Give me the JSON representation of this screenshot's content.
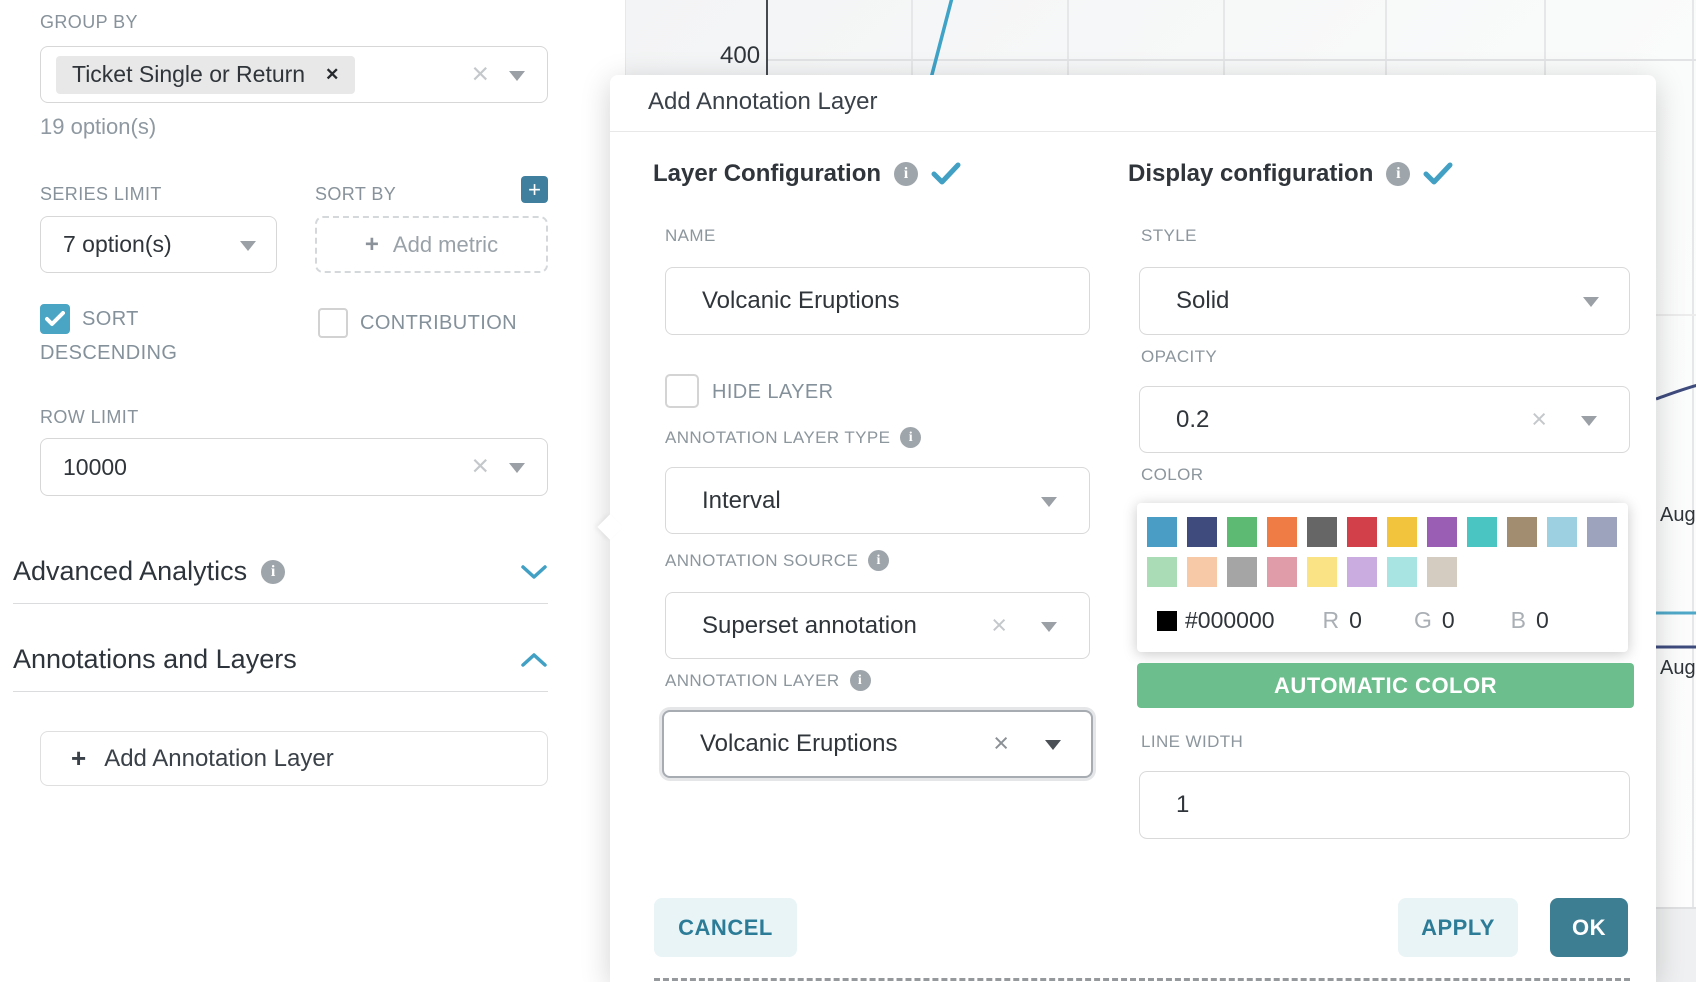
{
  "left_panel": {
    "group_by": {
      "label": "GROUP BY",
      "tag": "Ticket Single or Return",
      "tag_remove": "✕",
      "hint": "19 option(s)"
    },
    "series_limit": {
      "label": "SERIES LIMIT",
      "value": "7 option(s)"
    },
    "sort_by": {
      "label": "SORT BY",
      "add_metric": "Add metric",
      "plus": "+"
    },
    "sort_descending": {
      "label_line1": "SORT",
      "label_line2": "DESCENDING",
      "checked": true
    },
    "contribution": {
      "label": "CONTRIBUTION",
      "checked": false
    },
    "row_limit": {
      "label": "ROW LIMIT",
      "value": "10000"
    },
    "advanced_analytics": {
      "label": "Advanced Analytics"
    },
    "annotations_layers": {
      "label": "Annotations and Layers"
    },
    "add_annotation_button": {
      "plus": "+",
      "label": "Add Annotation Layer"
    }
  },
  "background_chart": {
    "y_tick": "400",
    "x_tick_1": "Aug",
    "x_tick_2": "Aug",
    "series_blue": "#3fa2c7",
    "series_navy": "#3e4b7d",
    "series_teal": "#4fa8c8"
  },
  "modal": {
    "title": "Add Annotation Layer",
    "layer_config": {
      "header": "Layer Configuration",
      "name_label": "NAME",
      "name_value": "Volcanic Eruptions",
      "hide_layer_label": "HIDE LAYER",
      "hide_layer_checked": false,
      "type_label": "ANNOTATION LAYER TYPE",
      "type_value": "Interval",
      "source_label": "ANNOTATION SOURCE",
      "source_value": "Superset annotation",
      "layer_label": "ANNOTATION LAYER",
      "layer_value": "Volcanic Eruptions"
    },
    "display_config": {
      "header": "Display configuration",
      "style_label": "STYLE",
      "style_value": "Solid",
      "opacity_label": "OPACITY",
      "opacity_value": "0.2",
      "color_label": "COLOR",
      "palette_row1": [
        "#4a9ec5",
        "#3f4b7c",
        "#5cba73",
        "#ef7c44",
        "#666666",
        "#d2404a",
        "#f2c43d",
        "#9a5fb5",
        "#4ac5c2",
        "#a38d70",
        "#9dd0e0",
        "#9ea3bd"
      ],
      "palette_row2": [
        "#aadcb6",
        "#f8c9a7",
        "#a5a5a5",
        "#e09ca8",
        "#f9e385",
        "#caace0",
        "#a8e4e2",
        "#d4cbc1"
      ],
      "selected_color": "#000000",
      "hex_value": "#000000",
      "r_label": "R",
      "r_value": "0",
      "g_label": "G",
      "g_value": "0",
      "b_label": "B",
      "b_value": "0",
      "auto_color_button": "AUTOMATIC COLOR",
      "line_width_label": "LINE WIDTH",
      "line_width_value": "1"
    },
    "footer": {
      "cancel": "CANCEL",
      "apply": "APPLY",
      "ok": "OK"
    }
  },
  "colors": {
    "accent_teal": "#3d7e93",
    "check_blue": "#41a0c4",
    "green_button": "#6cbe8c",
    "checkbox_checked": "#49a5c3"
  }
}
